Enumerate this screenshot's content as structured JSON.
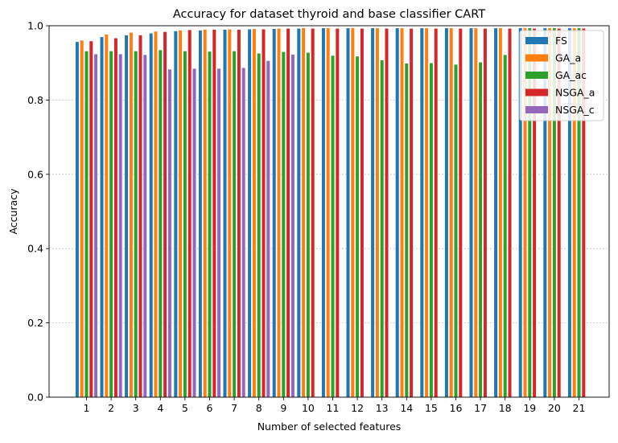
{
  "chart_data": {
    "type": "bar",
    "title": "Accuracy for dataset thyroid and base classifier CART",
    "xlabel": "Number of selected features",
    "ylabel": "Accuracy",
    "ylim": [
      0,
      1.0
    ],
    "yticks": [
      "0.0",
      "0.2",
      "0.4",
      "0.6",
      "0.8",
      "1.0"
    ],
    "grid": "y-dotted",
    "legend_position": "top-right",
    "categories": [
      "1",
      "2",
      "3",
      "4",
      "5",
      "6",
      "7",
      "8",
      "9",
      "10",
      "11",
      "12",
      "13",
      "14",
      "15",
      "16",
      "17",
      "18",
      "19",
      "20",
      "21"
    ],
    "series": [
      {
        "name": "FS",
        "color": "#1f77b4",
        "values": [
          0.957,
          0.97,
          0.975,
          0.98,
          0.986,
          0.988,
          0.99,
          0.991,
          0.992,
          0.993,
          0.994,
          0.994,
          0.994,
          0.994,
          0.994,
          0.994,
          0.994,
          0.994,
          0.994,
          0.994,
          0.994
        ]
      },
      {
        "name": "GA_a",
        "color": "#ff7f0e",
        "values": [
          0.961,
          0.977,
          0.982,
          0.985,
          0.988,
          0.99,
          0.991,
          0.992,
          0.993,
          0.994,
          0.994,
          0.994,
          0.994,
          0.994,
          0.994,
          0.994,
          0.994,
          0.994,
          0.994,
          0.994,
          0.994
        ]
      },
      {
        "name": "GA_ac",
        "color": "#2ca02c",
        "values": [
          0.932,
          0.932,
          0.932,
          0.935,
          0.932,
          0.931,
          0.932,
          0.926,
          0.93,
          0.928,
          0.92,
          0.918,
          0.908,
          0.899,
          0.9,
          0.896,
          0.902,
          0.922,
          0.994,
          0.994,
          0.994
        ]
      },
      {
        "name": "NSGA_a",
        "color": "#d62728",
        "values": [
          0.959,
          0.967,
          0.975,
          0.984,
          0.989,
          0.99,
          0.99,
          0.991,
          0.993,
          0.993,
          0.993,
          0.993,
          0.993,
          0.993,
          0.993,
          0.993,
          0.993,
          0.993,
          0.993,
          0.993,
          0.993
        ]
      },
      {
        "name": "NSGA_c",
        "color": "#9467bd",
        "values": [
          0.924,
          0.924,
          0.922,
          0.883,
          0.885,
          0.885,
          0.887,
          0.906,
          0.923,
          null,
          null,
          null,
          null,
          null,
          null,
          null,
          null,
          null,
          null,
          null,
          null
        ]
      }
    ]
  }
}
